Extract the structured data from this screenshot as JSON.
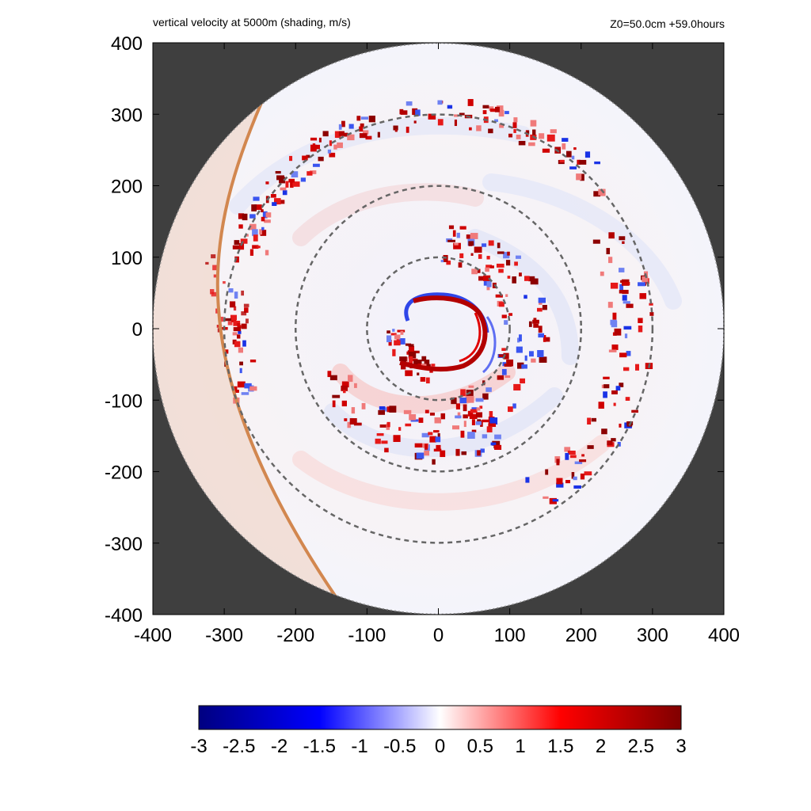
{
  "header": {
    "title": "vertical velocity at 5000m (shading, m/s)",
    "run_info": "Z0=50.0cm  +59.0hours"
  },
  "chart_data": {
    "type": "heatmap",
    "title": "vertical velocity at 5000m (shading, m/s)",
    "xlabel": "",
    "ylabel": "",
    "xlim": [
      -400,
      400
    ],
    "ylim": [
      -400,
      400
    ],
    "xticks": [
      -400,
      -300,
      -200,
      -100,
      0,
      100,
      200,
      300,
      400
    ],
    "yticks": [
      -400,
      -300,
      -200,
      -100,
      0,
      100,
      200,
      300,
      400
    ],
    "domain_radius": 400,
    "reference_circle_radii": [
      100,
      200,
      300
    ],
    "background_outside_domain": "#3f3f3f",
    "colorbar": {
      "min": -3,
      "max": 3,
      "ticks": [
        "-3",
        "-2.5",
        "-2",
        "-1.5",
        "-1",
        "-0.5",
        "0",
        "0.5",
        "1",
        "1.5",
        "2",
        "2.5",
        "3"
      ],
      "colors": [
        "#000080",
        "#0000ff",
        "#ffffff",
        "#ff0000",
        "#800000"
      ]
    },
    "features": {
      "land_boundary_color": "#d2874f",
      "eyewall_updraft_max": 3,
      "eyewall_downdraft_min": -3
    }
  }
}
